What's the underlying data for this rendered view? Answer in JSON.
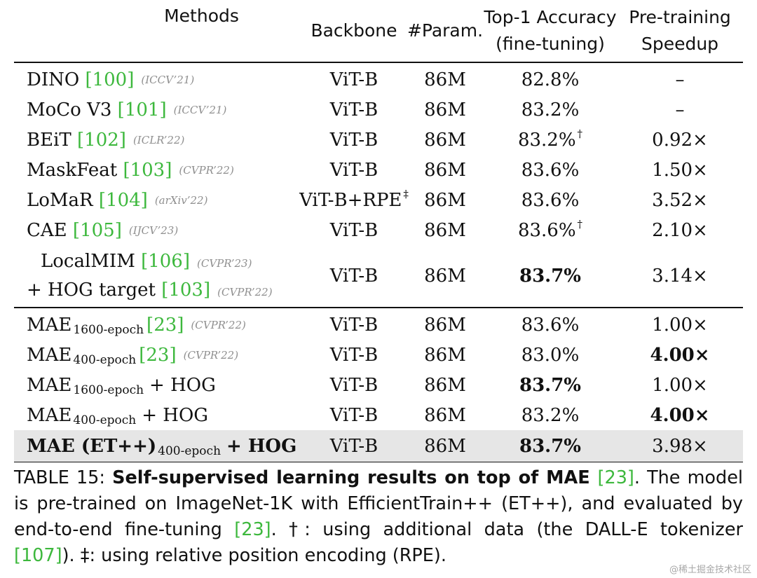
{
  "header": {
    "methods": "Methods",
    "backbone": "Backbone",
    "param": "#Param.",
    "accuracy_line1": "Top-1 Accuracy",
    "accuracy_line2": "(fine-tuning)",
    "speedup_line1": "Pre-training",
    "speedup_line2": "Speedup"
  },
  "rows_group1": [
    {
      "method": "DINO",
      "ref": "[100]",
      "venue": "(ICCV’21)",
      "backbone": "ViT-B",
      "param": "86M",
      "acc": "82.8%",
      "speedup": "–"
    },
    {
      "method": "MoCo V3",
      "ref": "[101]",
      "venue": "(ICCV’21)",
      "backbone": "ViT-B",
      "param": "86M",
      "acc": "83.2%",
      "speedup": "–"
    },
    {
      "method": "BEiT",
      "ref": "[102]",
      "venue": "(ICLR’22)",
      "backbone": "ViT-B",
      "param": "86M",
      "acc": "83.2%",
      "acc_mark": "†",
      "speedup": "0.92×"
    },
    {
      "method": "MaskFeat",
      "ref": "[103]",
      "venue": "(CVPR’22)",
      "backbone": "ViT-B",
      "param": "86M",
      "acc": "83.6%",
      "speedup": "1.50×"
    },
    {
      "method": "LoMaR",
      "ref": "[104]",
      "venue": "(arXiv’22)",
      "backbone": "ViT-B+RPE",
      "backbone_mark": "‡",
      "param": "86M",
      "acc": "83.6%",
      "speedup": "3.52×"
    },
    {
      "method": "CAE",
      "ref": "[105]",
      "venue": "(IJCV’23)",
      "backbone": "ViT-B",
      "param": "86M",
      "acc": "83.6%",
      "acc_mark": "†",
      "speedup": "2.10×"
    }
  ],
  "localmim": {
    "line1_method": "LocalMIM",
    "line1_ref": "[106]",
    "line1_venue": "(CVPR’23)",
    "line2_method": "+ HOG target",
    "line2_ref": "[103]",
    "line2_venue": "(CVPR’22)",
    "backbone": "ViT-B",
    "param": "86M",
    "acc": "83.7%",
    "speedup": "3.14×"
  },
  "rows_group2": [
    {
      "method": "MAE",
      "sub": "1600-epoch",
      "ref": "[23]",
      "venue": "(CVPR’22)",
      "backbone": "ViT-B",
      "param": "86M",
      "acc": "83.6%",
      "speedup": "1.00×"
    },
    {
      "method": "MAE",
      "sub": "400-epoch",
      "ref": "[23]",
      "venue": "(CVPR’22)",
      "backbone": "ViT-B",
      "param": "86M",
      "acc": "83.0%",
      "speedup": "4.00×"
    },
    {
      "method": "MAE",
      "sub": "1600-epoch",
      "suffix": "+ HOG",
      "backbone": "ViT-B",
      "param": "86M",
      "acc": "83.7%",
      "speedup": "1.00×"
    },
    {
      "method": "MAE",
      "sub": "400-epoch",
      "suffix": "+ HOG",
      "backbone": "ViT-B",
      "param": "86M",
      "acc": "83.2%",
      "speedup": "4.00×"
    },
    {
      "method": "MAE (ET++)",
      "sub": "400-epoch",
      "suffix": "+ HOG",
      "backbone": "ViT-B",
      "param": "86M",
      "acc": "83.7%",
      "speedup": "3.98×"
    }
  ],
  "caption": {
    "label": "TABLE 15: ",
    "title": "Self-supervised learning results on top of MAE ",
    "title_ref": "[23]",
    "text1": ". The model is pre-trained on ImageNet-1K with EfficientTrain++ (ET++), and evaluated by end-to-end fine-tuning ",
    "ref2": "[23]",
    "text2": ". †: using additional data (the DALL-E tokenizer ",
    "ref3": "[107]",
    "text3": "). ‡: using relative position encoding (RPE)."
  },
  "watermark": "@稀土掘金技术社区",
  "colors": {
    "reference": "#3db83d",
    "venue": "#8f8f8f",
    "highlight_row": "#e6e6e6"
  }
}
